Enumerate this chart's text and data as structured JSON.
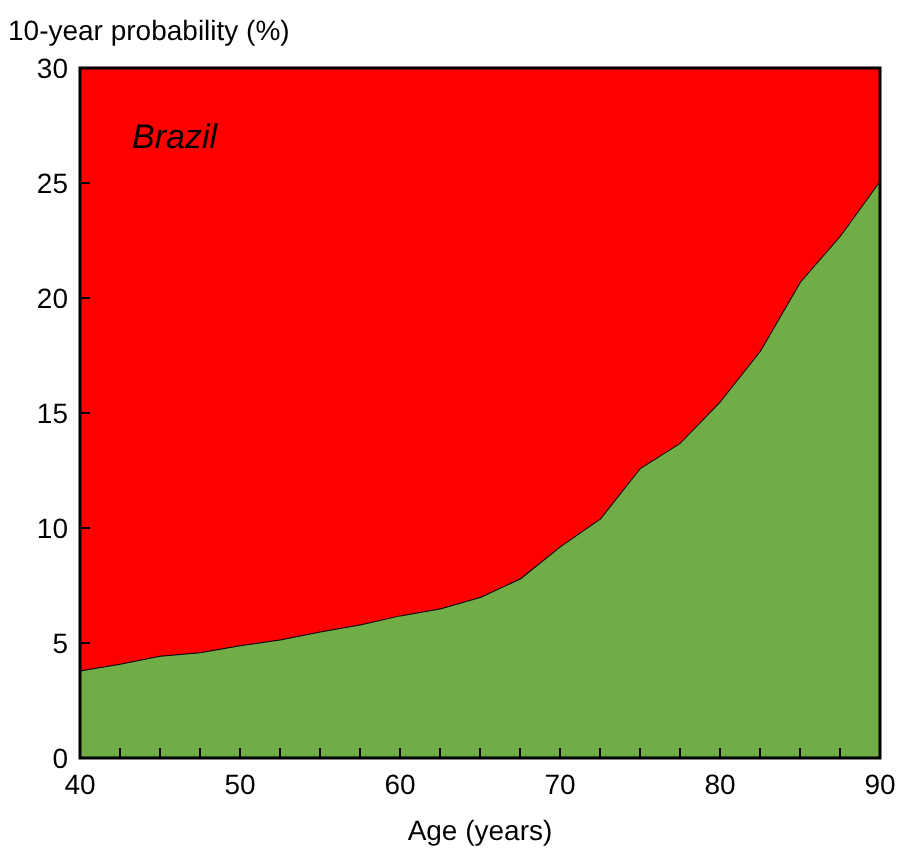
{
  "chart_data": {
    "type": "area",
    "stacked": true,
    "xlabel": "Age (years)",
    "ylabel": "10-year probability (%)",
    "annotations": [
      "Brazil"
    ],
    "x": [
      40,
      42.5,
      45,
      47.5,
      50,
      52.5,
      55,
      57.5,
      60,
      62.5,
      65,
      67.5,
      70,
      72.5,
      75,
      77.5,
      80,
      82.5,
      85,
      87.5,
      90
    ],
    "series": [
      {
        "color": "#70ad47",
        "values": [
          3.8,
          4.1,
          4.45,
          4.6,
          4.9,
          5.15,
          5.5,
          5.8,
          6.2,
          6.5,
          7.0,
          7.8,
          9.2,
          10.4,
          12.6,
          13.7,
          15.5,
          17.7,
          20.7,
          22.7,
          25.1
        ]
      },
      {
        "color": "#ff0000",
        "values": [
          26.2,
          25.9,
          25.55,
          25.4,
          25.1,
          24.85,
          24.5,
          24.2,
          23.8,
          23.5,
          23.0,
          22.2,
          20.8,
          19.6,
          17.4,
          16.3,
          14.5,
          12.3,
          9.3,
          7.3,
          4.9
        ]
      }
    ],
    "xlim": [
      40,
      90
    ],
    "ylim": [
      0,
      30
    ],
    "xticks": [
      40,
      {
        "value": 42.5,
        "label": null
      },
      {
        "value": 45,
        "label": null
      },
      {
        "value": 47.5,
        "label": null
      },
      50,
      {
        "value": 52.5,
        "label": null
      },
      {
        "value": 55,
        "label": null
      },
      {
        "value": 57.5,
        "label": null
      },
      60,
      {
        "value": 62.5,
        "label": null
      },
      {
        "value": 65,
        "label": null
      },
      {
        "value": 67.5,
        "label": null
      },
      70,
      {
        "value": 72.5,
        "label": null
      },
      {
        "value": 75,
        "label": null
      },
      {
        "value": 77.5,
        "label": null
      },
      80,
      {
        "value": 82.5,
        "label": null
      },
      {
        "value": 85,
        "label": null
      },
      {
        "value": 87.5,
        "label": null
      },
      90
    ],
    "yticks": [
      0,
      5,
      10,
      15,
      20,
      25,
      30
    ]
  }
}
